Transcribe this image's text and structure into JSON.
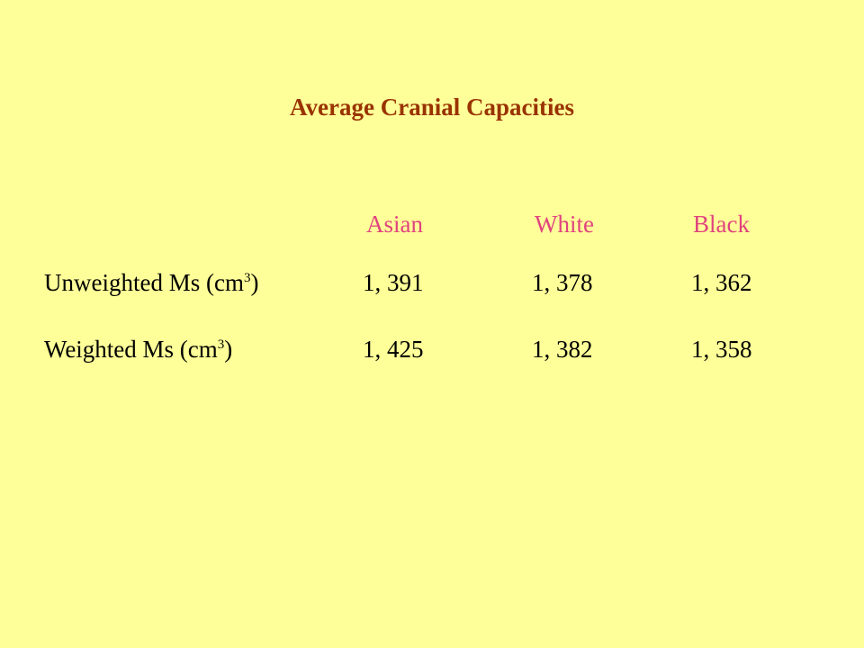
{
  "title": "Average Cranial Capacities",
  "table": {
    "columns": [
      "Asian",
      "White",
      "Black"
    ],
    "rows": [
      {
        "label": "Unweighted Ms (cm",
        "superscript": "3",
        "label_close": ")",
        "values": [
          "1, 391",
          "1, 378",
          "1, 362"
        ]
      },
      {
        "label": "Weighted Ms (cm",
        "superscript": "3",
        "label_close": ")",
        "values": [
          "1, 425",
          "1, 382",
          "1, 358"
        ]
      }
    ]
  },
  "colors": {
    "background": "#FFFF99",
    "title": "#993300",
    "column_headers": "#E0437F",
    "body_text": "#000000"
  }
}
